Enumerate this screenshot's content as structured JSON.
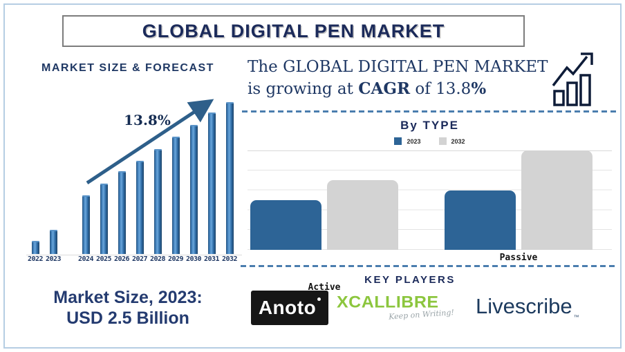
{
  "header": {
    "title": "GLOBAL DIGITAL PEN MARKET"
  },
  "forecast": {
    "title": "MARKET SIZE & FORECAST",
    "growth_label": "13.8%"
  },
  "cagr": {
    "line1": "The GLOBAL DIGITAL PEN MARKET",
    "line2": {
      "prefix": "is growing at ",
      "strong1": "CAGR",
      "mid": " of 13.8",
      "strong2": "%"
    }
  },
  "by_type": {
    "title": "By TYPE"
  },
  "market_note": {
    "line1": "Market Size, 2023:",
    "line2": "USD 2.5 Billion"
  },
  "key_players": {
    "title": "KEY PLAYERS",
    "anoto": {
      "text": "Anoto"
    },
    "xcallibre": {
      "text": "XCALLIBRE",
      "tagline": "Keep on Writing!"
    },
    "livescribe": {
      "text": "Livescribe",
      "tm": "™"
    }
  },
  "colors": {
    "navy": "#1F3864",
    "forecast_bar_blue": "#2E75B6",
    "type_bar_blue": "#2D6496",
    "type_bar_gray": "#D3D3D3",
    "dash_blue": "#4A7DAE",
    "xcallibre_green": "#8CC63E",
    "page_border": "#B5CDE3"
  },
  "chart_data": [
    {
      "type": "bar",
      "title": "MARKET SIZE & FORECAST",
      "categories": [
        "2022",
        "2023",
        "2024",
        "2025",
        "2026",
        "2027",
        "2028",
        "2029",
        "2030",
        "2031",
        "2032"
      ],
      "values": [
        8,
        15,
        38,
        46,
        54,
        61,
        69,
        77,
        85,
        93,
        100
      ],
      "gap_before": "2024",
      "annotation": "13.8%",
      "bar_color": "#2E75B6",
      "ylabel": "",
      "xlabel": "",
      "note": "no y-axis shown; values are relative bar heights with 2032 = 100"
    },
    {
      "type": "bar",
      "title": "By TYPE",
      "categories": [
        "Active",
        "Passive"
      ],
      "series": [
        {
          "name": "2023",
          "color": "#2D6496",
          "values": [
            2.5,
            3.0
          ]
        },
        {
          "name": "2032",
          "color": "#D3D3D3",
          "values": [
            3.5,
            5.0
          ]
        }
      ],
      "ylim": [
        0,
        5
      ],
      "grid": true,
      "legend_position": "top",
      "note": "y-axis unlabeled; values estimated in gridline units"
    }
  ]
}
